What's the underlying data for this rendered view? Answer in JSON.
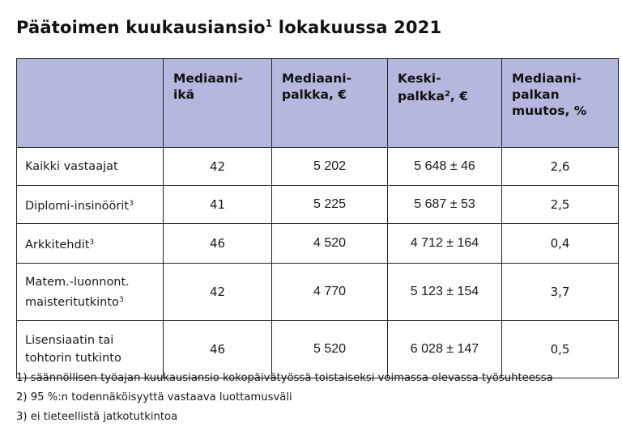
{
  "title": {
    "text": "Päätoimen kuukausiansio",
    "sup": "1",
    "text_after": " lokakuussa 2021"
  },
  "headers": [
    {
      "line1": "Mediaani-",
      "line2": "ikä",
      "line3": "",
      "sup": ""
    },
    {
      "line1": "Mediaani-",
      "line2": "palkka, €",
      "line3": "",
      "sup": ""
    },
    {
      "line1": "Keski-",
      "line2": "palkka",
      "line3": "",
      "sup": "2",
      "after_sup": ", €"
    },
    {
      "line1": "Mediaani-",
      "line2": "palkan",
      "line3": "muutos, %",
      "sup": ""
    }
  ],
  "rows": [
    {
      "label": "Kaikki vastaajat",
      "label2": "",
      "sup": "",
      "age": "42",
      "median": "5 202",
      "mean": "5 648 ± 46",
      "change": "2,6"
    },
    {
      "label": "Diplomi-insinöörit",
      "label2": "",
      "sup": "3",
      "age": "41",
      "median": "5 225",
      "mean": "5 687 ± 53",
      "change": "2,5"
    },
    {
      "label": "Arkkitehdit",
      "label2": "",
      "sup": "3",
      "age": "46",
      "median": "4 520",
      "mean": "4 712 ± 164",
      "change": "0,4"
    },
    {
      "label": "Matem.-luonnont.",
      "label2": "maisteritutkinto",
      "sup": "3",
      "age": "42",
      "median": "4 770",
      "mean": "5 123 ± 154",
      "change": "3,7"
    },
    {
      "label": "Lisensiaatin tai",
      "label2": "tohtorin tutkinto",
      "sup": "",
      "age": "46",
      "median": "5 520",
      "mean": "6 028 ± 147",
      "change": "0,5"
    }
  ],
  "footnotes": [
    "1) säännöllisen työajan kuukausiansio kokopäivätyössä toistaiseksi voimassa olevassa työsuhteessa",
    "2) 95 %:n todennäköisyyttä vastaava luottamusväli",
    "3) ei tieteellistä jatkotutkintoa"
  ]
}
